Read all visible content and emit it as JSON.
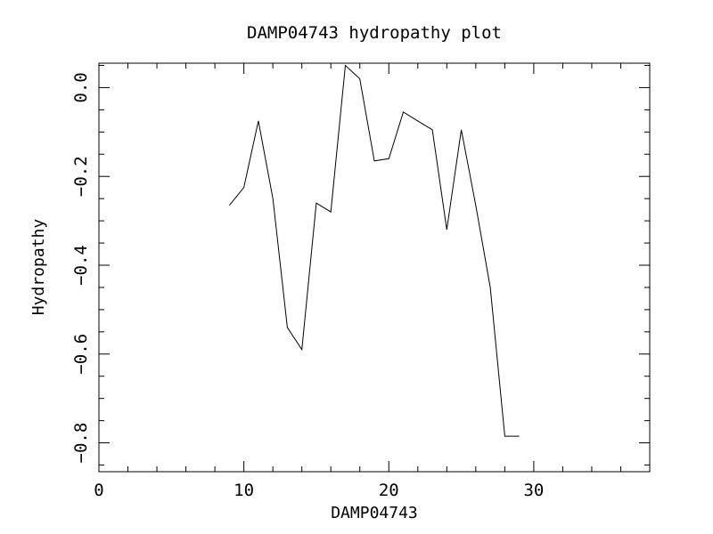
{
  "chart_data": {
    "type": "line",
    "title": "DAMP04743 hydropathy plot",
    "xlabel": "DAMP04743",
    "ylabel": "Hydropathy",
    "xlim": [
      0,
      38
    ],
    "ylim": [
      -0.865,
      0.055
    ],
    "x_ticks_major": [
      0,
      10,
      20,
      30
    ],
    "x_tick_labels": [
      "0",
      "10",
      "20",
      "30"
    ],
    "y_ticks_major": [
      0.0,
      -0.2,
      -0.4,
      -0.6,
      -0.8
    ],
    "y_tick_labels": [
      "0.0",
      "−0.2",
      "−0.4",
      "−0.6",
      "−0.8"
    ],
    "grid": false,
    "series": [
      {
        "x": [
          9,
          10,
          11,
          12,
          13,
          14,
          15,
          16,
          17,
          18,
          19,
          20,
          21,
          22,
          23,
          24,
          25,
          26,
          27,
          28,
          29
        ],
        "y": [
          -0.265,
          -0.225,
          -0.075,
          -0.25,
          -0.54,
          -0.59,
          -0.26,
          -0.28,
          0.05,
          0.02,
          -0.165,
          -0.16,
          -0.055,
          -0.075,
          -0.095,
          -0.32,
          -0.095,
          -0.265,
          -0.45,
          -0.785,
          -0.785
        ],
        "color": "#000000"
      }
    ]
  }
}
